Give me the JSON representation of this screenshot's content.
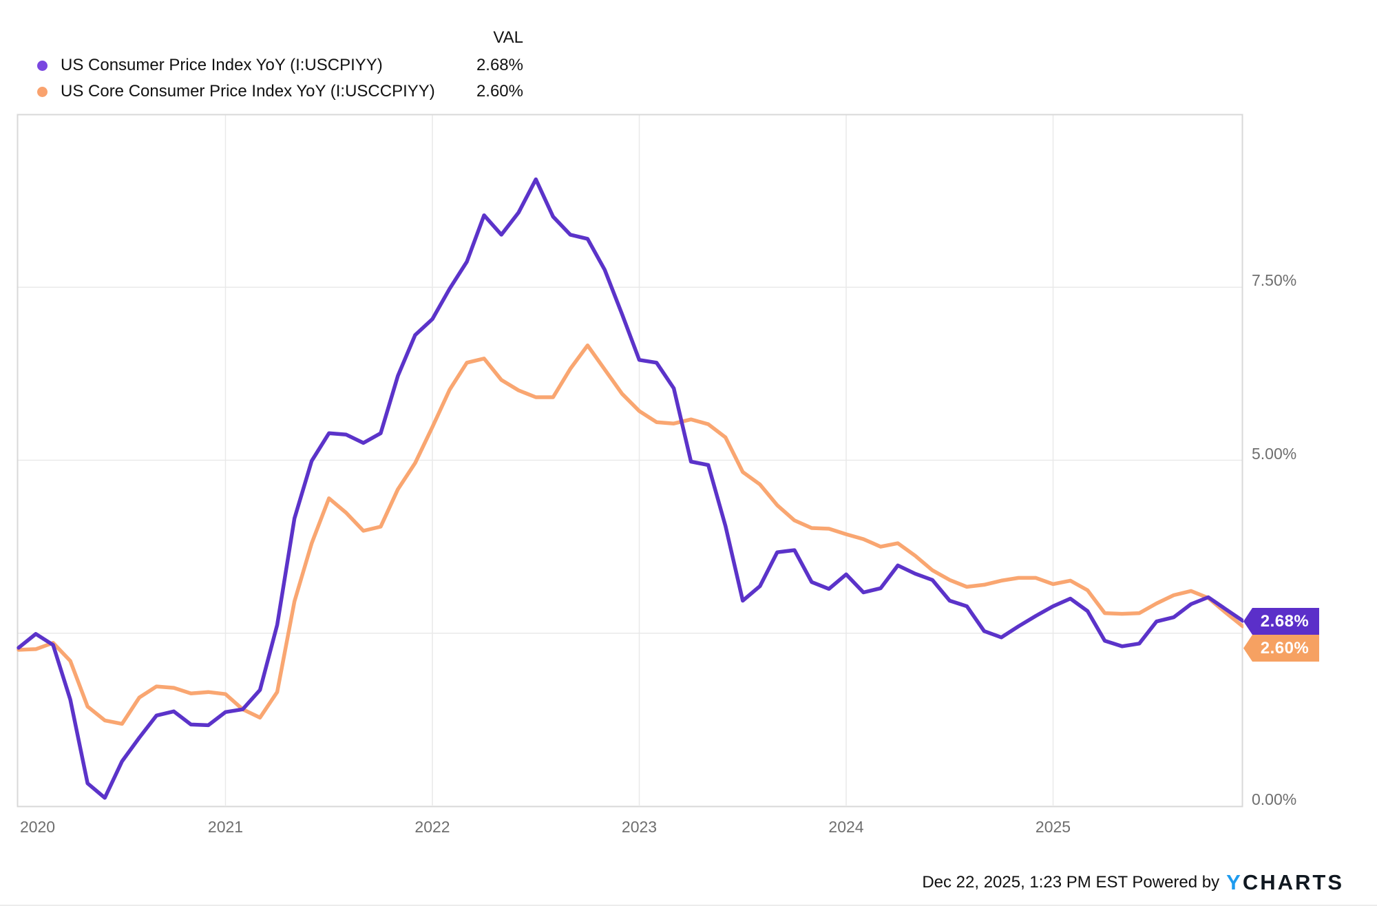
{
  "legend": {
    "val_header": "VAL",
    "series": [
      {
        "label": "US Consumer Price Index YoY (I:USCPIYY)",
        "value": "2.68%",
        "dot_color": "#7a47e0"
      },
      {
        "label": "US Core Consumer Price Index YoY (I:USCCPIYY)",
        "value": "2.60%",
        "dot_color": "#f9a26e"
      }
    ]
  },
  "badges": [
    {
      "text": "2.68%",
      "color": "#5b2fc9"
    },
    {
      "text": "2.60%",
      "color": "#f6a162"
    }
  ],
  "footer": {
    "timestamp": "Dec 22, 2025, 1:23 PM EST",
    "powered_by": "Powered by",
    "brand_y": "Y",
    "brand_rest": "CHARTS"
  },
  "chart_data": {
    "type": "line",
    "x_unit": "month",
    "x_start": "2019-12",
    "x_end": "2025-11",
    "ylim": [
      0,
      10
    ],
    "grid": true,
    "y_gridlines": [
      2.5,
      5.0,
      7.5
    ],
    "y_tick_labels": [
      {
        "value": 7.5,
        "label": "7.50%"
      },
      {
        "value": 5.0,
        "label": "5.00%"
      },
      {
        "value": 0.0,
        "label": "0.00%"
      }
    ],
    "x_ticks": [
      {
        "label": "2020",
        "month_index": 1.1,
        "gridline": false
      },
      {
        "label": "2021",
        "month_index": 12,
        "gridline": true
      },
      {
        "label": "2022",
        "month_index": 24,
        "gridline": true
      },
      {
        "label": "2023",
        "month_index": 36,
        "gridline": true
      },
      {
        "label": "2024",
        "month_index": 48,
        "gridline": true
      },
      {
        "label": "2025",
        "month_index": 60,
        "gridline": true
      }
    ],
    "series": [
      {
        "name": "US Consumer Price Index YoY",
        "ticker": "I:USCPIYY",
        "color": "#5b33c9",
        "last_value": 2.68,
        "values": [
          2.29,
          2.49,
          2.33,
          1.54,
          0.33,
          0.12,
          0.65,
          0.99,
          1.31,
          1.37,
          1.18,
          1.17,
          1.36,
          1.4,
          1.68,
          2.62,
          4.16,
          4.99,
          5.39,
          5.37,
          5.25,
          5.39,
          6.22,
          6.81,
          7.04,
          7.48,
          7.87,
          8.54,
          8.26,
          8.58,
          9.06,
          8.52,
          8.26,
          8.2,
          7.75,
          7.11,
          6.45,
          6.41,
          6.04,
          4.98,
          4.93,
          4.05,
          2.97,
          3.18,
          3.67,
          3.7,
          3.24,
          3.14,
          3.35,
          3.09,
          3.15,
          3.48,
          3.36,
          3.27,
          2.97,
          2.89,
          2.53,
          2.44,
          2.6,
          2.75,
          2.89,
          3.0,
          2.82,
          2.39,
          2.31,
          2.35,
          2.67,
          2.73,
          2.92,
          3.02,
          2.85,
          2.68
        ]
      },
      {
        "name": "US Core Consumer Price Index YoY",
        "ticker": "I:USCCPIYY",
        "color": "#f9a671",
        "last_value": 2.6,
        "values": [
          2.26,
          2.27,
          2.36,
          2.1,
          1.44,
          1.24,
          1.19,
          1.57,
          1.73,
          1.71,
          1.63,
          1.65,
          1.62,
          1.4,
          1.28,
          1.65,
          2.96,
          3.8,
          4.45,
          4.24,
          3.98,
          4.04,
          4.58,
          4.96,
          5.48,
          6.02,
          6.41,
          6.47,
          6.16,
          6.01,
          5.91,
          5.91,
          6.32,
          6.66,
          6.31,
          5.96,
          5.71,
          5.55,
          5.53,
          5.59,
          5.52,
          5.33,
          4.83,
          4.65,
          4.35,
          4.13,
          4.02,
          4.01,
          3.93,
          3.86,
          3.75,
          3.8,
          3.62,
          3.41,
          3.27,
          3.17,
          3.2,
          3.26,
          3.3,
          3.3,
          3.21,
          3.26,
          3.12,
          2.79,
          2.78,
          2.79,
          2.93,
          3.05,
          3.11,
          3.01,
          2.8,
          2.6
        ]
      }
    ]
  }
}
